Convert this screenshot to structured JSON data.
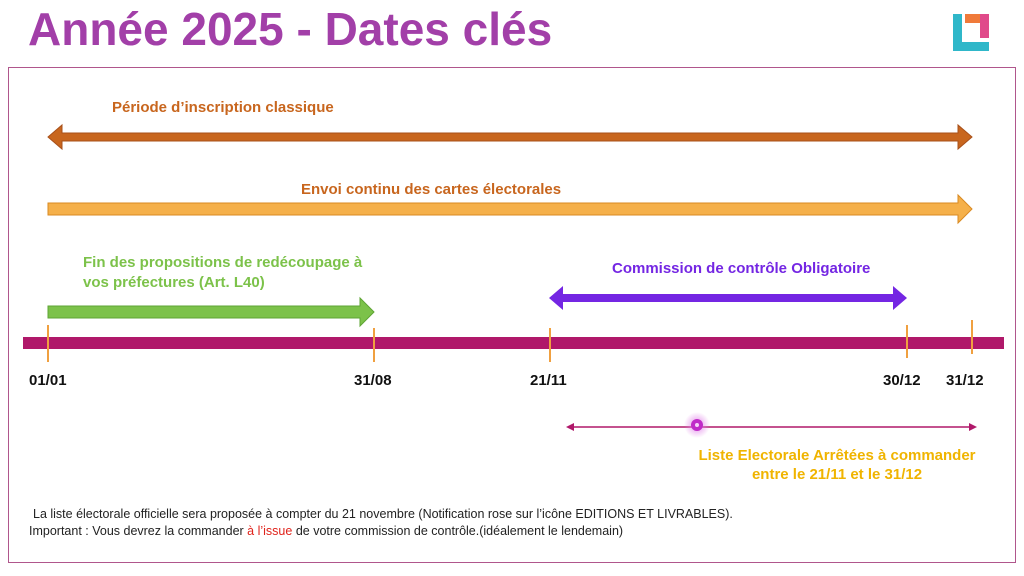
{
  "title": "Année 2025 - Dates clés",
  "colors": {
    "title": "#a23fa8",
    "timeline": "#b0186a",
    "tick": "#f0a040",
    "period_classic": "#c8661e",
    "cards": "#f5b04a",
    "redecoupage": "#7cc24a",
    "commission": "#7426e3",
    "liste": "#b0186a",
    "liste_label": "#f0b400",
    "highlight": "#e0231b"
  },
  "periods": {
    "inscription": "Période d’inscription classique",
    "envoi": "Envoi continu des cartes électorales",
    "redecoupage_line1": "Fin des propositions de redécoupage à",
    "redecoupage_line2": "vos préfectures (Art. L40)",
    "commission": "Commission de contrôle Obligatoire",
    "liste_line1": "Liste Electorale Arrêtées à commander",
    "liste_line2": "entre le 21/11 et le 31/12"
  },
  "dates": [
    "01/01",
    "31/08",
    "21/11",
    "30/12",
    "31/12"
  ],
  "notes": {
    "line1": "La liste électorale officielle sera proposée à compter du 21 novembre (Notification rose sur l’icône EDITIONS ET LIVRABLES).",
    "line2_before": "Important : Vous devrez la commander ",
    "line2_highlight": "à l’issue",
    "line2_after": " de votre commission de contrôle.(idéalement le lendemain)"
  },
  "icons": {
    "logo": "logo-icon",
    "notification": "notification-dot-icon"
  }
}
